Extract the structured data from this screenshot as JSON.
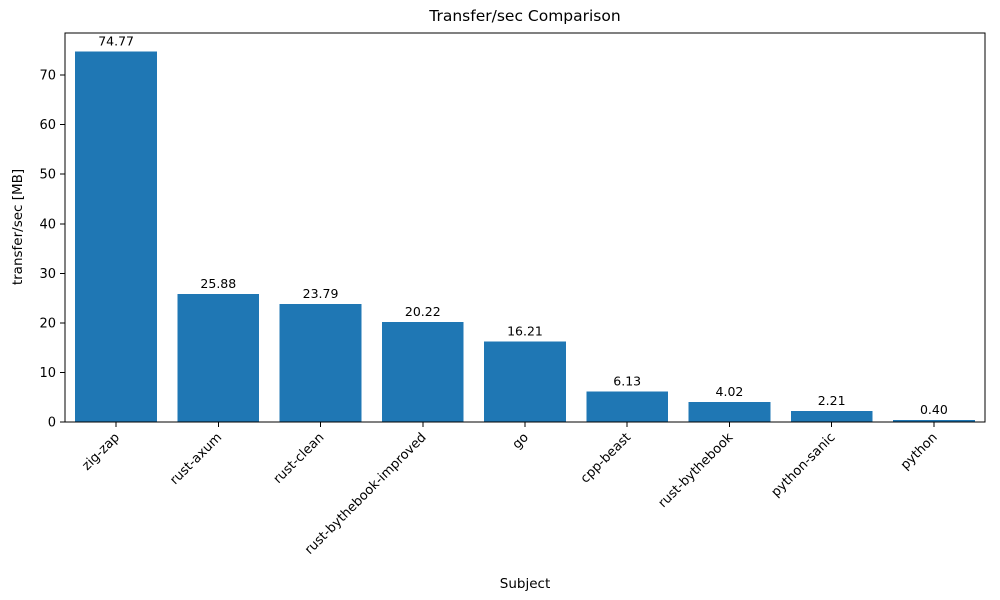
{
  "chart_data": {
    "type": "bar",
    "title": "Transfer/sec Comparison",
    "xlabel": "Subject",
    "ylabel": "transfer/sec [MB]",
    "categories": [
      "zig-zap",
      "rust-axum",
      "rust-clean",
      "rust-bythebook-improved",
      "go",
      "cpp-beast",
      "rust-bythebook",
      "python-sanic",
      "python"
    ],
    "values": [
      74.77,
      25.88,
      23.79,
      20.22,
      16.21,
      6.13,
      4.02,
      2.21,
      0.4
    ],
    "value_labels": [
      "74.77",
      "25.88",
      "23.79",
      "20.22",
      "16.21",
      "6.13",
      "4.02",
      "2.21",
      "0.40"
    ],
    "yticks": [
      0,
      10,
      20,
      30,
      40,
      50,
      60,
      70
    ],
    "ylim": [
      0,
      78.5
    ],
    "grid": false,
    "legend_position": "none",
    "bar_color": "#1f77b4",
    "text_color": "#000000",
    "background": "#ffffff"
  }
}
